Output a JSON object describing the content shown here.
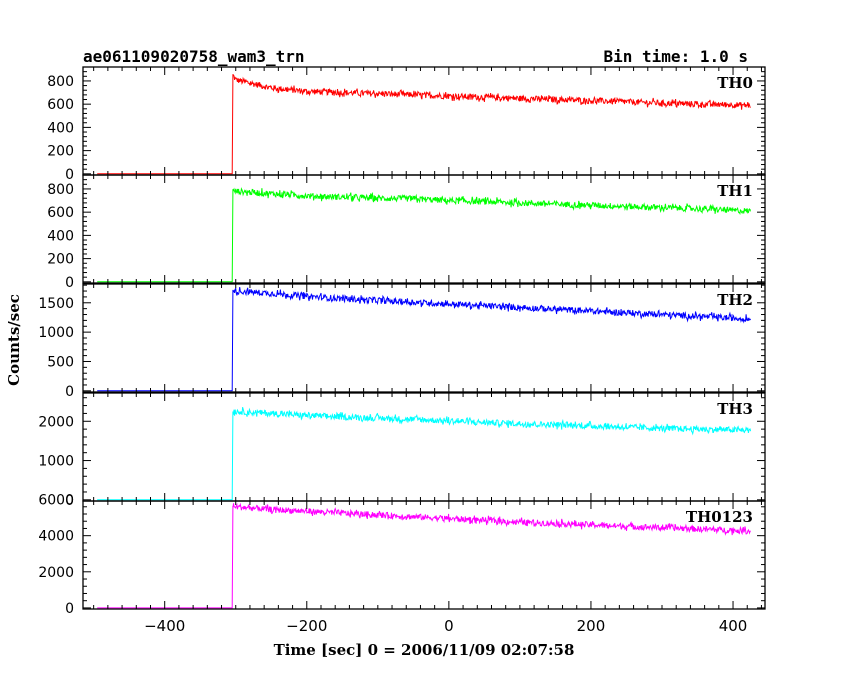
{
  "header": {
    "title": "ae061109020758_wam3_trn",
    "bin_time": "Bin time: 1.0 s"
  },
  "chart_data": {
    "type": "line",
    "title": "ae061109020758_wam3_trn",
    "xlabel": "Time [sec] 0 = 2006/11/09 02:07:58",
    "ylabel": "Counts/sec",
    "xlim": [
      -515,
      445
    ],
    "x_ticks": [
      -400,
      -200,
      0,
      200,
      400
    ],
    "x_tick_labels": [
      "−400",
      "−200",
      "0",
      "200",
      "400"
    ],
    "grid": false,
    "panels": [
      {
        "name": "TH0",
        "color": "#ff0000",
        "ylim": [
          -10,
          920
        ],
        "y_ticks": [
          0,
          200,
          400,
          600,
          800
        ],
        "y_tick_labels": [
          "0",
          "200",
          "400",
          "600",
          "800"
        ],
        "x": [
          -495,
          -305,
          -304,
          -300,
          -250,
          -200,
          -150,
          -100,
          -50,
          0,
          50,
          100,
          150,
          200,
          250,
          300,
          350,
          400,
          425
        ],
        "y": [
          0,
          0,
          850,
          810,
          740,
          710,
          700,
          690,
          680,
          670,
          660,
          650,
          640,
          630,
          620,
          610,
          600,
          595,
          590
        ]
      },
      {
        "name": "TH1",
        "color": "#00ff00",
        "ylim": [
          -10,
          920
        ],
        "y_ticks": [
          0,
          200,
          400,
          600,
          800
        ],
        "y_tick_labels": [
          "0",
          "200",
          "400",
          "600",
          "800"
        ],
        "x": [
          -495,
          -305,
          -304,
          -300,
          -250,
          -200,
          -150,
          -100,
          -50,
          0,
          50,
          100,
          150,
          200,
          250,
          300,
          350,
          400,
          425
        ],
        "y": [
          0,
          0,
          780,
          780,
          760,
          740,
          730,
          720,
          715,
          700,
          690,
          680,
          670,
          660,
          650,
          640,
          630,
          615,
          610
        ]
      },
      {
        "name": "TH2",
        "color": "#0000ff",
        "ylim": [
          -20,
          1820
        ],
        "y_ticks": [
          0,
          500,
          1000,
          1500
        ],
        "y_tick_labels": [
          "0",
          "500",
          "1000",
          "1500"
        ],
        "x": [
          -495,
          -305,
          -304,
          -300,
          -250,
          -200,
          -150,
          -100,
          -50,
          0,
          50,
          100,
          150,
          200,
          250,
          300,
          350,
          400,
          425
        ],
        "y": [
          0,
          0,
          1720,
          1700,
          1660,
          1610,
          1570,
          1540,
          1510,
          1480,
          1450,
          1420,
          1390,
          1360,
          1330,
          1300,
          1270,
          1240,
          1220
        ]
      },
      {
        "name": "TH3",
        "color": "#00ffff",
        "ylim": [
          -30,
          2720
        ],
        "y_ticks": [
          0,
          1000,
          2000
        ],
        "y_tick_labels": [
          "0",
          "1000",
          "2000"
        ],
        "x": [
          -495,
          -305,
          -304,
          -300,
          -250,
          -200,
          -150,
          -100,
          -50,
          0,
          50,
          100,
          150,
          200,
          250,
          300,
          350,
          400,
          425
        ],
        "y": [
          0,
          0,
          2250,
          2250,
          2200,
          2150,
          2110,
          2080,
          2050,
          2010,
          1970,
          1940,
          1910,
          1880,
          1850,
          1820,
          1800,
          1780,
          1770
        ]
      },
      {
        "name": "TH0123",
        "color": "#ff00ff",
        "ylim": [
          -60,
          5920
        ],
        "y_ticks": [
          0,
          2000,
          4000,
          6000
        ],
        "y_tick_labels": [
          "0",
          "2000",
          "4000",
          "6000"
        ],
        "x": [
          -495,
          -305,
          -304,
          -300,
          -250,
          -200,
          -150,
          -100,
          -50,
          0,
          50,
          100,
          150,
          200,
          250,
          300,
          350,
          400,
          425
        ],
        "y": [
          0,
          0,
          5650,
          5600,
          5450,
          5350,
          5250,
          5150,
          5050,
          4950,
          4850,
          4750,
          4680,
          4600,
          4520,
          4450,
          4370,
          4300,
          4250
        ]
      }
    ]
  }
}
